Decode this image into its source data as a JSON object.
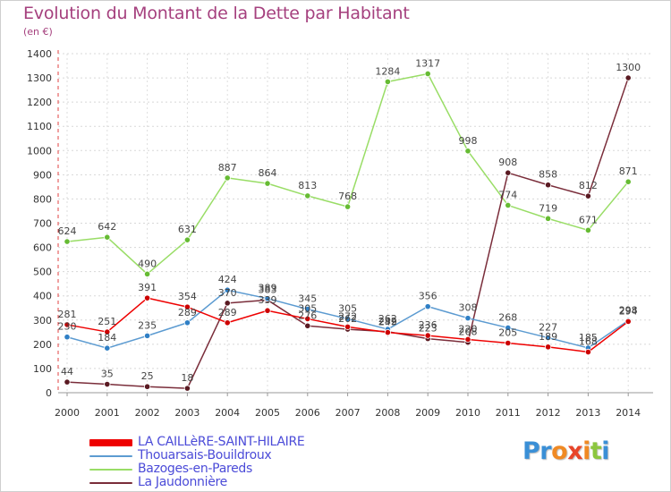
{
  "title": "Evolution du Montant de la Dette par Habitant",
  "unit": "(en €)",
  "logo": "Proxiti",
  "chart_data": {
    "type": "line",
    "title": "Evolution du Montant de la Dette par Habitant",
    "subtitle": "(en €)",
    "xlabel": "",
    "ylabel": "",
    "x": [
      2000,
      2001,
      2002,
      2003,
      2004,
      2005,
      2006,
      2007,
      2008,
      2009,
      2010,
      2011,
      2012,
      2013,
      2014
    ],
    "x_tick_labels": [
      "2000",
      "2001",
      "2002",
      "2003",
      "2004",
      "2005",
      "2006",
      "2007",
      "2008",
      "2009",
      "2010",
      "2011",
      "2012",
      "2013",
      "2014"
    ],
    "ylim": [
      0,
      1400
    ],
    "y_ticks": [
      0,
      100,
      200,
      300,
      400,
      500,
      600,
      700,
      800,
      900,
      1000,
      1100,
      1200,
      1300,
      1400
    ],
    "y_tick_labels": [
      "0",
      "100",
      "200",
      "300",
      "400",
      "500",
      "600",
      "700",
      "800",
      "900",
      "1000",
      "1100",
      "1200",
      "1300",
      "1400"
    ],
    "grid": true,
    "legend_position": "bottom-left",
    "series": [
      {
        "name": "Bazoges-en-Pareds",
        "color": "#99dd66",
        "marker_color": "#66bb33",
        "values": [
          624,
          642,
          490,
          631,
          887,
          864,
          813,
          768,
          1284,
          1317,
          998,
          774,
          719,
          671,
          871
        ],
        "labels": [
          "624",
          "642",
          "490",
          "631",
          "887",
          "864",
          "813",
          "768",
          "1284",
          "1317",
          "998",
          "774",
          "719",
          "671",
          "871"
        ]
      },
      {
        "name": "La Jaudonnière",
        "color": "#7a2d3a",
        "marker_color": "#5a1a22",
        "values": [
          44,
          35,
          25,
          18,
          370,
          383,
          276,
          262,
          252,
          223,
          208,
          908,
          858,
          812,
          1300
        ],
        "labels": [
          "44",
          "35",
          "25",
          "18",
          "370",
          "383",
          "276",
          "262",
          "252",
          "223",
          "208",
          "908",
          "858",
          "812",
          "1300"
        ]
      },
      {
        "name": "Thouarsais-Bouildroux",
        "color": "#5c9bd1",
        "marker_color": "#2f7fc5",
        "values": [
          230,
          184,
          235,
          289,
          424,
          389,
          345,
          305,
          262,
          356,
          308,
          268,
          227,
          185,
          298
        ],
        "labels": [
          "230",
          "184",
          "235",
          "289",
          "424",
          "389",
          "345",
          "305",
          "262",
          "356",
          "308",
          "268",
          "227",
          "185",
          "298"
        ]
      },
      {
        "name": "LA CAILLèRE-SAINT-HILAIRE",
        "color": "#ee0000",
        "marker_color": "#cc0000",
        "values": [
          281,
          251,
          391,
          354,
          289,
          339,
          305,
          272,
          249,
          236,
          220,
          205,
          189,
          168,
          294
        ],
        "labels": [
          "281",
          "251",
          "391",
          "354",
          "289",
          "339",
          "305",
          "272",
          "249",
          "236",
          "220",
          "205",
          "189",
          "168",
          "294"
        ]
      }
    ]
  },
  "legend": [
    {
      "label": "LA CAILLèRE-SAINT-HILAIRE",
      "color": "#ee0000",
      "thickness": 8
    },
    {
      "label": "Thouarsais-Bouildroux",
      "color": "#5c9bd1",
      "thickness": 2
    },
    {
      "label": "Bazoges-en-Pareds",
      "color": "#99dd66",
      "thickness": 2
    },
    {
      "label": "La Jaudonnière",
      "color": "#7a2d3a",
      "thickness": 2
    }
  ]
}
